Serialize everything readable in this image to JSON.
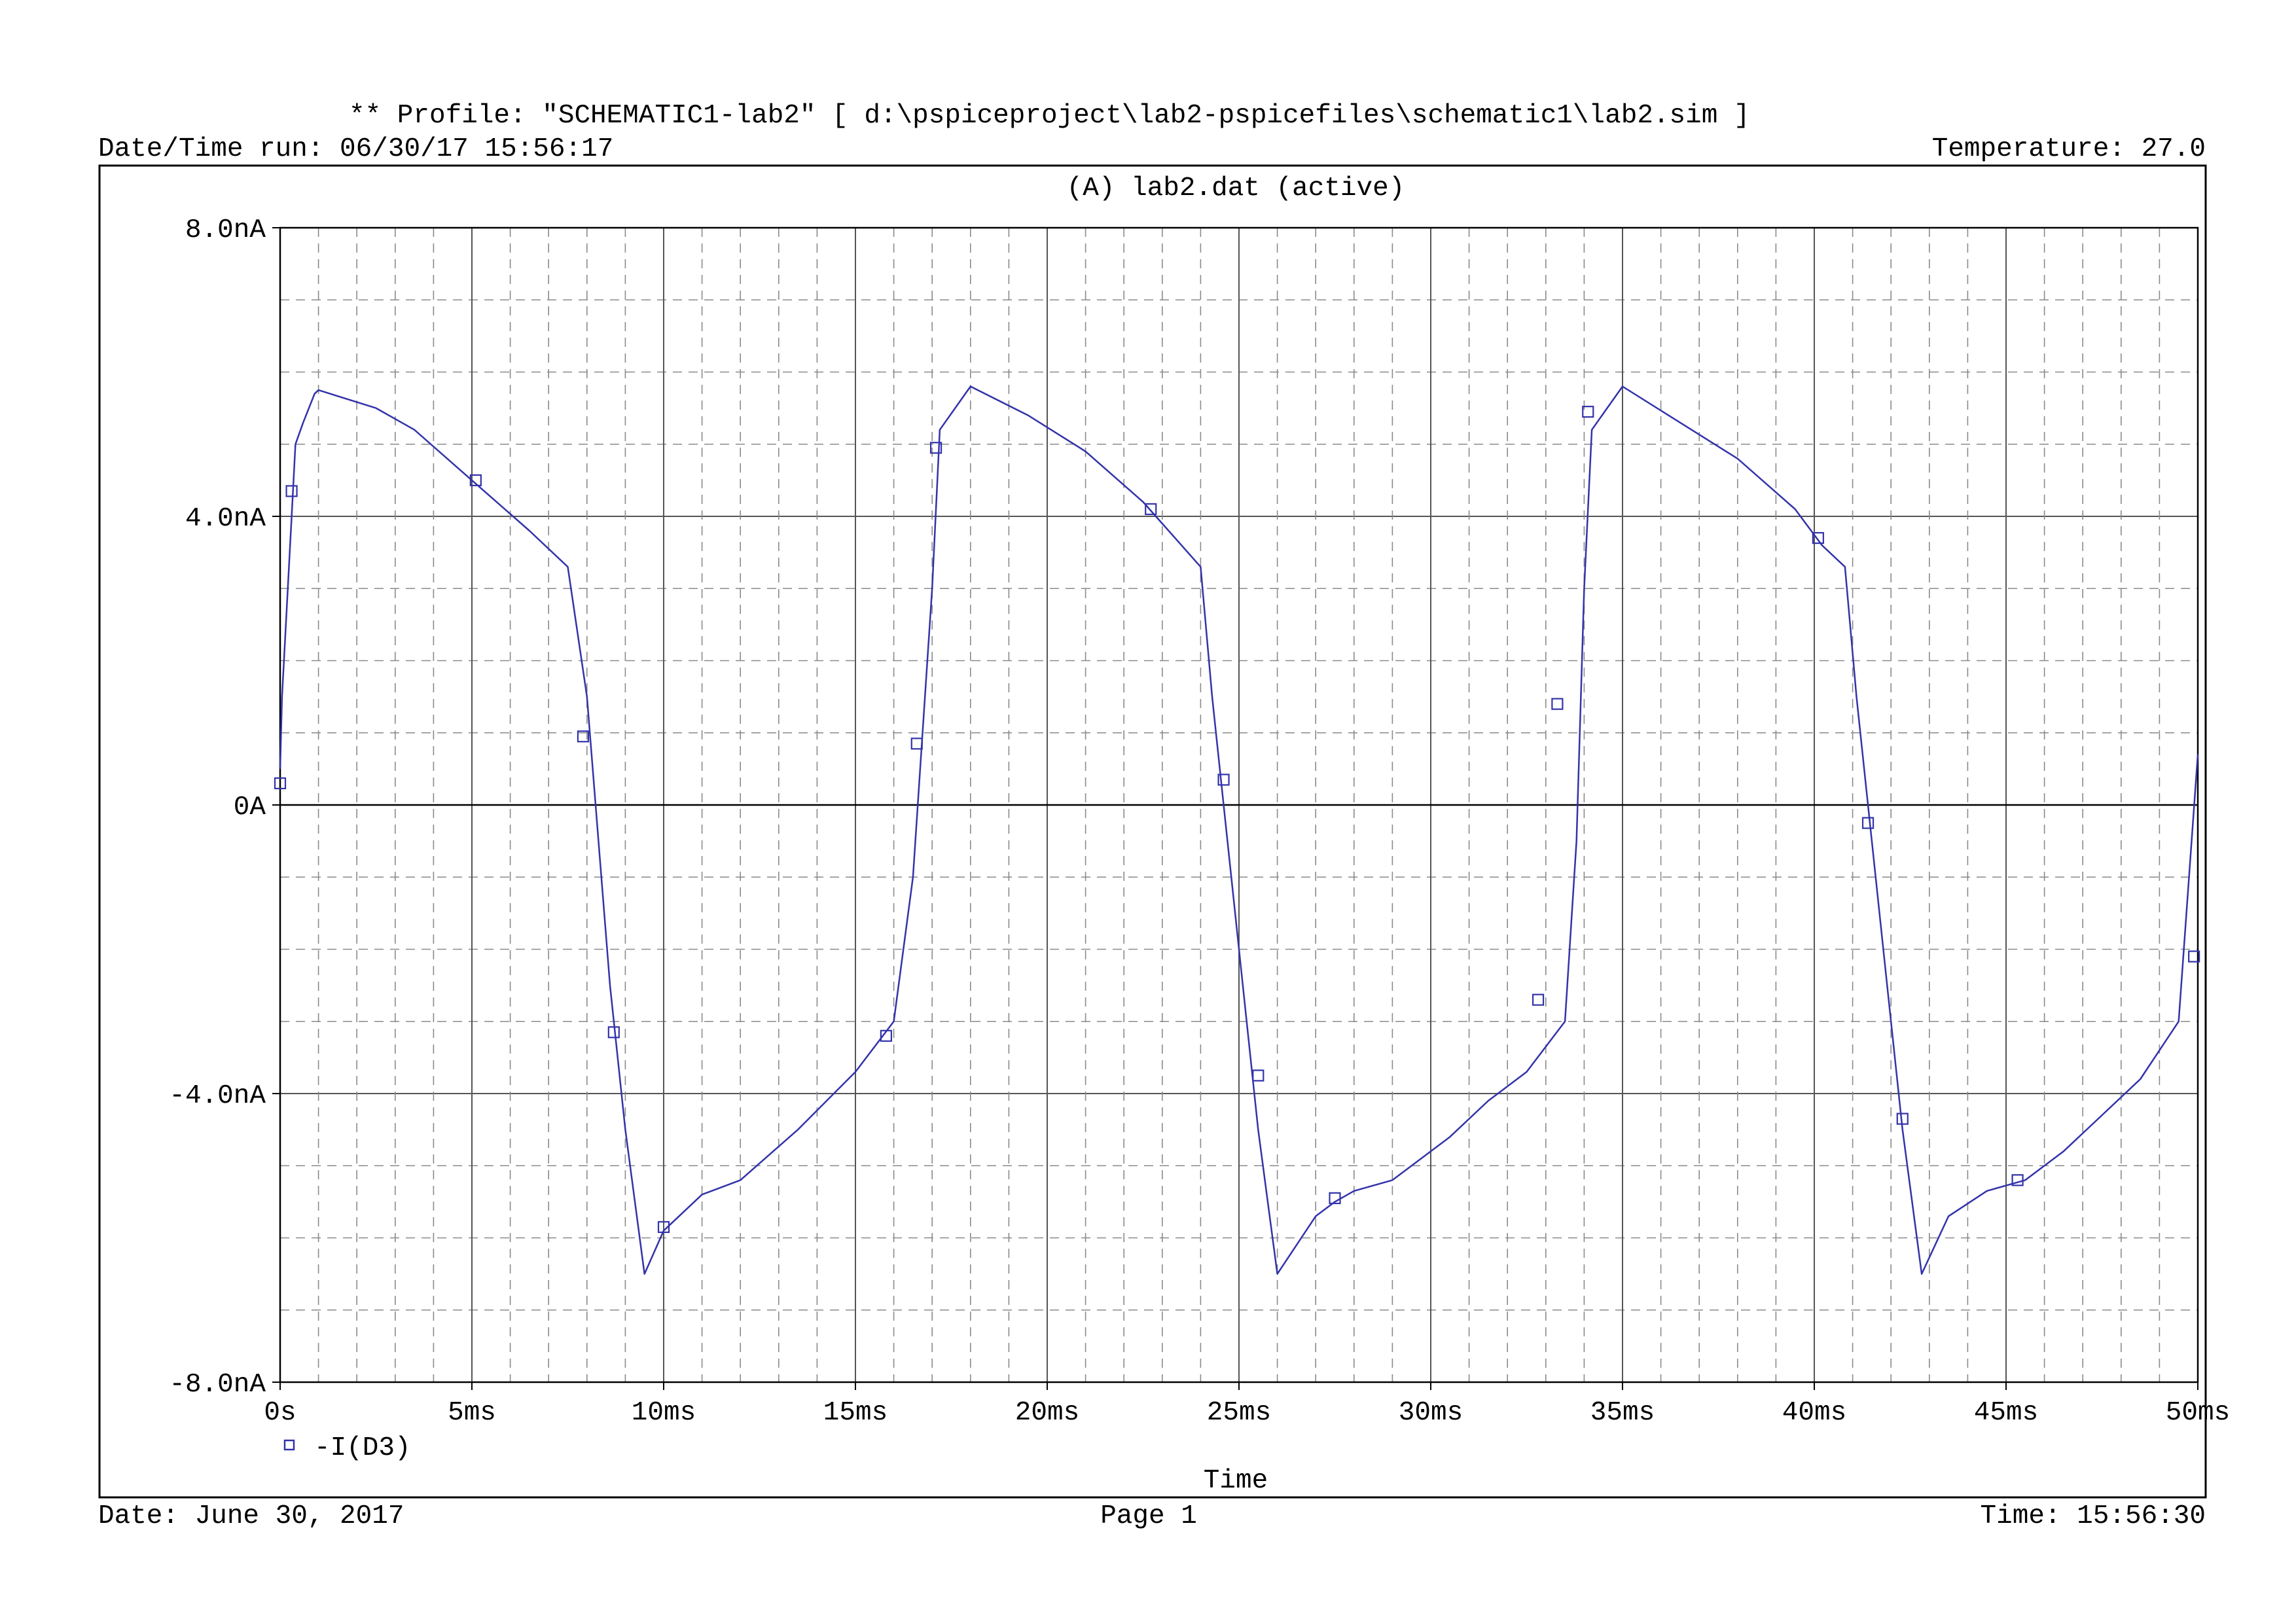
{
  "header": {
    "profile": "** Profile: \"SCHEMATIC1-lab2\"  [ d:\\pspiceproject\\lab2-pspicefiles\\schematic1\\lab2.sim ]",
    "run_datetime": "Date/Time run: 06/30/17 15:56:17",
    "temperature": "Temperature: 27.0"
  },
  "footer": {
    "date": "Date: June 30, 2017",
    "page": "Page 1",
    "time": "Time: 15:56:30"
  },
  "colors": {
    "trace": "#3333aa",
    "major_grid": "#555555",
    "minor_grid": "#8a8a8a",
    "axis": "#000000",
    "frame": "#000000"
  },
  "chart_data": {
    "type": "line",
    "title": "(A) lab2.dat (active)",
    "xlabel": "Time",
    "ylabel": "",
    "xlim": [
      0,
      50
    ],
    "ylim": [
      -8,
      8
    ],
    "x_unit": "ms",
    "y_unit": "nA",
    "x_ticks": [
      0,
      5,
      10,
      15,
      20,
      25,
      30,
      35,
      40,
      45,
      50
    ],
    "x_tick_labels": [
      "0s",
      "5ms",
      "10ms",
      "15ms",
      "20ms",
      "25ms",
      "30ms",
      "35ms",
      "40ms",
      "45ms",
      "50ms"
    ],
    "y_ticks": [
      8,
      4,
      0,
      -4,
      -8
    ],
    "y_tick_labels": [
      "8.0nA",
      "4.0nA",
      "0A",
      "-4.0nA",
      "-8.0nA"
    ],
    "grid": true,
    "legend_position": "bottom-left",
    "series": [
      {
        "name": "-I(D3)",
        "marker": "square",
        "x": [
          0.0,
          0.05,
          0.3,
          0.4,
          0.6,
          0.9,
          1.0,
          2.5,
          3.5,
          5.0,
          6.5,
          7.5,
          8.0,
          8.3,
          8.6,
          9.0,
          9.5,
          10.0,
          11.0,
          12.0,
          13.5,
          15.0,
          16.0,
          16.5,
          17.0,
          17.2,
          18.0,
          19.5,
          21.0,
          22.5,
          24.0,
          24.3,
          24.7,
          25.0,
          25.5,
          26.0,
          27.0,
          27.5,
          28.0,
          29.0,
          30.5,
          31.5,
          32.5,
          33.5,
          33.8,
          34.0,
          34.2,
          35.0,
          36.5,
          38.0,
          39.5,
          40.2,
          40.8,
          41.1,
          41.5,
          41.9,
          42.3,
          42.8,
          43.5,
          44.5,
          45.5,
          46.5,
          47.5,
          48.5,
          49.5,
          50.0
        ],
        "y": [
          0.5,
          1.5,
          4.0,
          5.0,
          5.3,
          5.7,
          5.75,
          5.5,
          5.2,
          4.5,
          3.8,
          3.3,
          1.5,
          -0.5,
          -2.5,
          -4.5,
          -6.5,
          -5.9,
          -5.4,
          -5.2,
          -4.5,
          -3.7,
          -3.0,
          -1.0,
          3.0,
          5.2,
          5.8,
          5.4,
          4.9,
          4.2,
          3.3,
          1.5,
          -0.5,
          -2.0,
          -4.5,
          -6.5,
          -5.7,
          -5.5,
          -5.35,
          -5.2,
          -4.6,
          -4.1,
          -3.7,
          -3.0,
          -0.5,
          3.0,
          5.2,
          5.8,
          5.3,
          4.8,
          4.1,
          3.6,
          3.3,
          1.5,
          -0.5,
          -2.5,
          -4.5,
          -6.5,
          -5.7,
          -5.35,
          -5.2,
          -4.8,
          -4.3,
          -3.8,
          -3.0,
          0.7
        ],
        "marker_points": [
          [
            0.0,
            0.3
          ],
          [
            0.3,
            4.35
          ],
          [
            5.1,
            4.5
          ],
          [
            7.9,
            0.95
          ],
          [
            8.7,
            -3.15
          ],
          [
            10.0,
            -5.85
          ],
          [
            15.8,
            -3.2
          ],
          [
            16.6,
            0.85
          ],
          [
            17.1,
            4.95
          ],
          [
            22.7,
            4.1
          ],
          [
            24.6,
            0.35
          ],
          [
            25.5,
            -3.75
          ],
          [
            27.5,
            -5.45
          ],
          [
            32.8,
            -2.7
          ],
          [
            33.3,
            1.4
          ],
          [
            34.1,
            5.45
          ],
          [
            40.1,
            3.7
          ],
          [
            41.4,
            -0.25
          ],
          [
            42.3,
            -4.35
          ],
          [
            45.3,
            -5.2
          ],
          [
            49.9,
            -2.1
          ]
        ]
      }
    ]
  }
}
